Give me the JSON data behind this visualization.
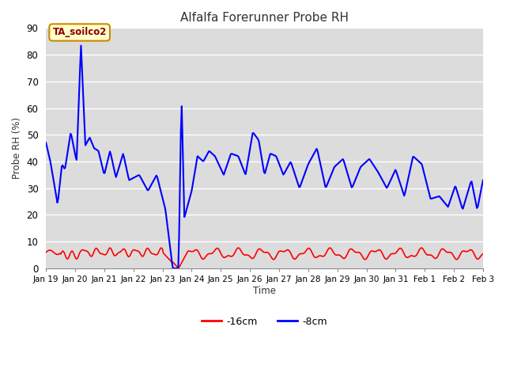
{
  "title": "Alfalfa Forerunner Probe RH",
  "ylabel": "Probe RH (%)",
  "xlabel": "Time",
  "annotation_text": "TA_soilco2",
  "annotation_bg": "#ffffcc",
  "annotation_border": "#cc8800",
  "ylim": [
    0,
    90
  ],
  "yticks": [
    0,
    10,
    20,
    30,
    40,
    50,
    60,
    70,
    80,
    90
  ],
  "fig_bg": "#e8e8e8",
  "plot_bg": "#dcdcdc",
  "legend_bg": "#ffffff",
  "grid_color": "#ffffff",
  "line_red_color": "#ff0000",
  "line_blue_color": "#0000ff",
  "legend_labels": [
    "-16cm",
    "-8cm"
  ],
  "xtick_labels": [
    "Jan 19",
    "Jan 20",
    "Jan 21",
    "Jan 22",
    "Jan 23",
    "Jan 24",
    "Jan 25",
    "Jan 26",
    "Jan 27",
    "Jan 28",
    "Jan 29",
    "Jan 30",
    "Jan 31",
    "Feb 1",
    "Feb 2",
    "Feb 3"
  ],
  "num_points": 500,
  "figsize": [
    6.4,
    4.8
  ],
  "dpi": 100
}
